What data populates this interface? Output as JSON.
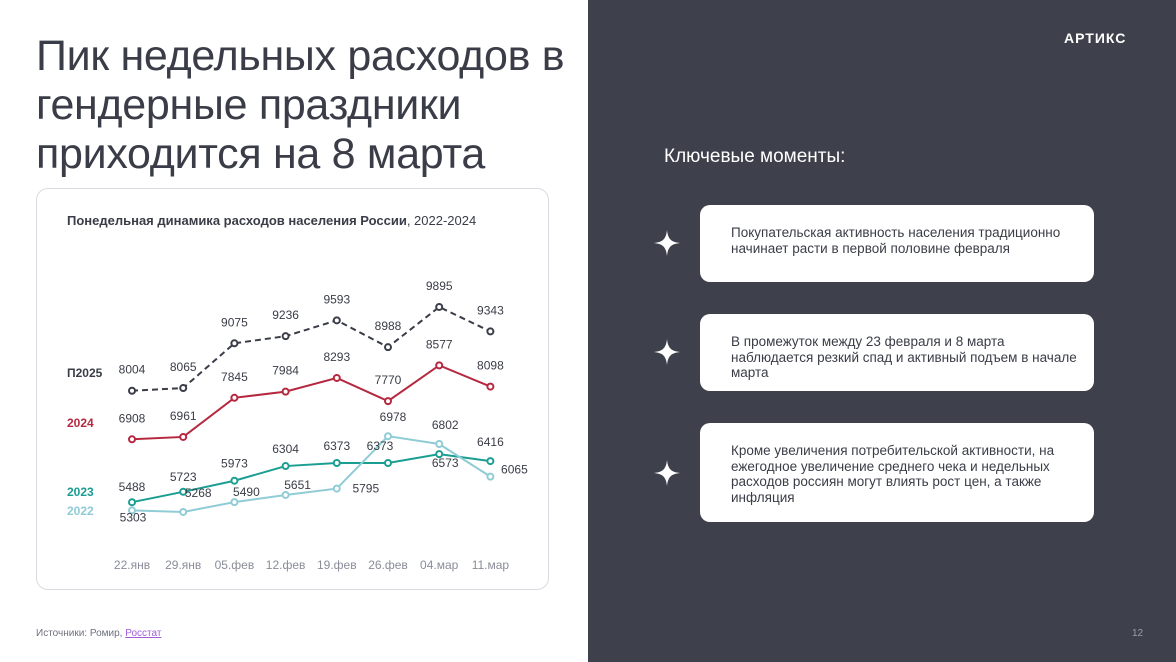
{
  "title": "Пик недельных расходов в гендерные праздники приходится на 8 марта",
  "chart_title_bold": "Понедельная динамика расходов населения России",
  "chart_title_rest": ", 2022-2024",
  "source_prefix": "Источники: Ромир, ",
  "source_link": "Росстат",
  "logo": "АРТИКС",
  "key_title": "Ключевые моменты:",
  "points": [
    "Покупательская активность населения традиционно начинает расти в первой половине февраля",
    "В промежуток между 23 февраля и 8 марта наблюдается резкий спад и активный подъем в начале марта",
    "Кроме увеличения потребительской активности, на ежегодное увеличение среднего чека и недельных расходов россиян могут влиять рост цен, а также инфляция"
  ],
  "page_number": "12",
  "chart_data": {
    "type": "line",
    "title": "Понедельная динамика расходов населения России, 2022-2024",
    "categories": [
      "22.янв",
      "29.янв",
      "05.фев",
      "12.фев",
      "19.фев",
      "26.фев",
      "04.мар",
      "11.мар"
    ],
    "series": [
      {
        "name": "П2025",
        "values": [
          8004,
          8065,
          9075,
          9236,
          9593,
          8988,
          9895,
          9343
        ],
        "color": "#3a3d47",
        "dashed": true
      },
      {
        "name": "2024",
        "values": [
          6908,
          6961,
          7845,
          7984,
          8293,
          7770,
          8577,
          8098
        ],
        "color": "#b5283f",
        "dashed": false
      },
      {
        "name": "2023",
        "values": [
          5488,
          5723,
          5973,
          6304,
          6373,
          6373,
          6573,
          6416
        ],
        "color": "#1a9e92",
        "dashed": false
      },
      {
        "name": "2022",
        "values": [
          5303,
          5268,
          5490,
          5651,
          5795,
          6978,
          6802,
          6065
        ],
        "color": "#8fccd6",
        "dashed": false
      }
    ],
    "grid": false,
    "legend": "left"
  }
}
